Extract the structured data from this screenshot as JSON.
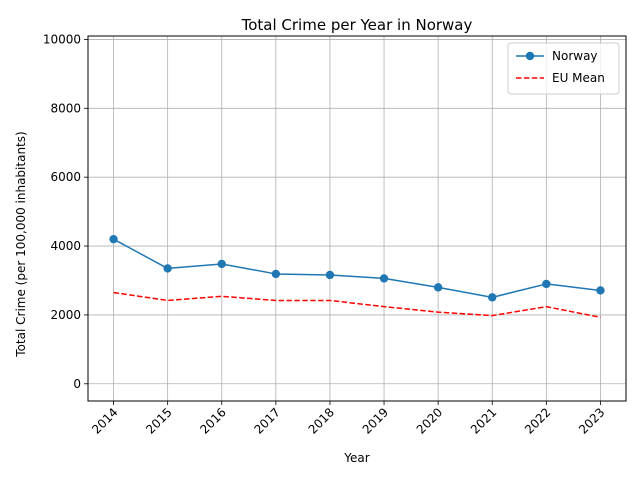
{
  "chart_data": {
    "type": "line",
    "title": "Total Crime per Year in Norway",
    "xlabel": "Year",
    "ylabel": "Total Crime (per 100,000 inhabitants)",
    "categories": [
      "2014",
      "2015",
      "2016",
      "2017",
      "2018",
      "2019",
      "2020",
      "2021",
      "2022",
      "2023"
    ],
    "ylim": [
      -500,
      10100
    ],
    "yticks": [
      0,
      2000,
      4000,
      6000,
      8000,
      10000
    ],
    "grid": true,
    "legend_position": "top-right",
    "series": [
      {
        "name": "Norway",
        "style": "solid-with-markers",
        "color": "#1f77b4",
        "values": [
          4200,
          3350,
          3480,
          3190,
          3160,
          3060,
          2800,
          2510,
          2900,
          2710
        ]
      },
      {
        "name": "EU Mean",
        "style": "dashed",
        "color": "#ff0000",
        "values": [
          2650,
          2420,
          2540,
          2420,
          2420,
          2240,
          2080,
          1980,
          2240,
          1930
        ]
      }
    ]
  }
}
